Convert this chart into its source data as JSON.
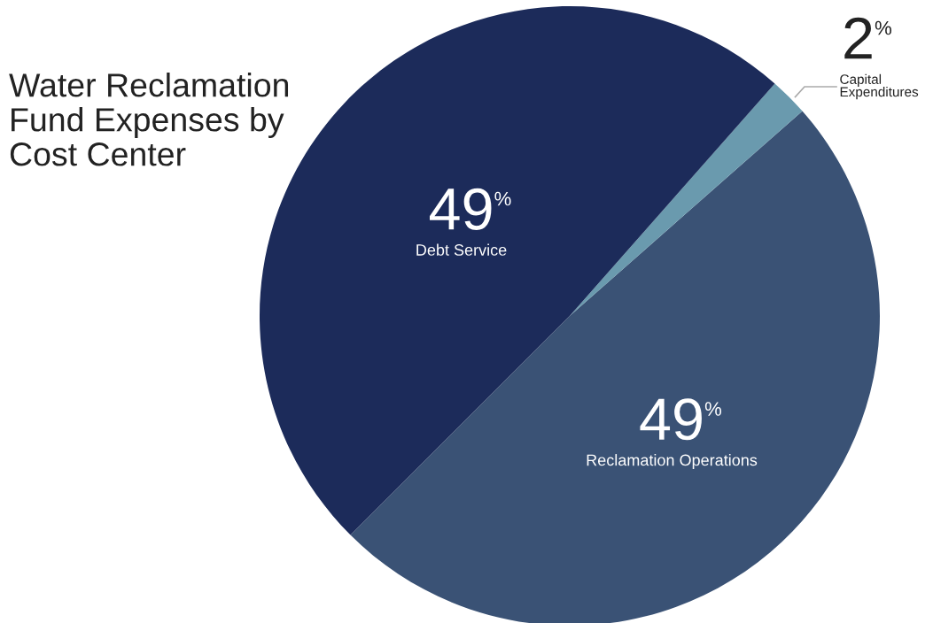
{
  "chart_data": {
    "type": "pie",
    "title": "Water Reclamation\nFund Expenses by\nCost Center",
    "categories": [
      "Reclamation Operations",
      "Capital Expenditures",
      "Debt Service"
    ],
    "values": [
      49,
      2,
      49
    ],
    "colors": [
      "#3a5275",
      "#6a9aae",
      "#1c2b5a"
    ],
    "value_labels": [
      "49%",
      "2%",
      "49%"
    ]
  }
}
